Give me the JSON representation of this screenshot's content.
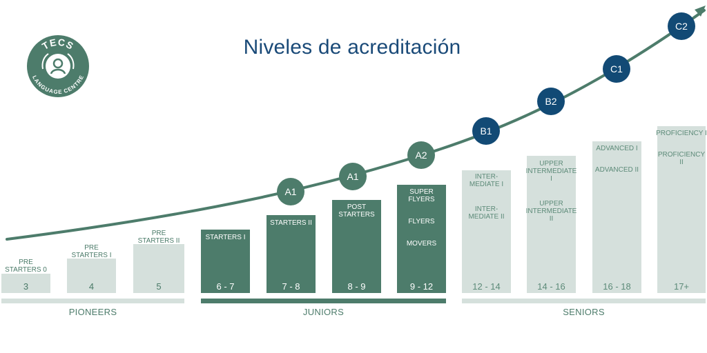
{
  "title": "Niveles de acreditación",
  "logo": {
    "top_text": "TECS",
    "bottom_text": "LANGUAGE CENTRE"
  },
  "colors": {
    "green": "#4d7c6b",
    "light": "#d5e0dc",
    "blue": "#124a75",
    "title": "#1a4a78"
  },
  "groups": [
    {
      "label": "PIONEERS"
    },
    {
      "label": "JUNIORS"
    },
    {
      "label": "SENIORS"
    }
  ],
  "columns": [
    {
      "levels": [
        "PRE",
        "STARTERS 0"
      ],
      "age": "3"
    },
    {
      "levels": [
        "PRE",
        "STARTERS I"
      ],
      "age": "4"
    },
    {
      "levels": [
        "PRE",
        "STARTERS II"
      ],
      "age": "5"
    },
    {
      "levels": [
        "STARTERS I"
      ],
      "age": "6 - 7"
    },
    {
      "levels": [
        "STARTERS II"
      ],
      "age": "7 - 8"
    },
    {
      "levels": [
        "POST",
        "STARTERS"
      ],
      "age": "8 - 9"
    },
    {
      "levels": [
        "SUPER",
        "FLYERS",
        "FLYERS",
        "MOVERS"
      ],
      "age": "9 - 12"
    },
    {
      "levels": [
        "INTER-",
        "MEDIATE I",
        "INTER-",
        "MEDIATE II"
      ],
      "age": "12 - 14"
    },
    {
      "levels": [
        "UPPER",
        "INTERMEDIATE I",
        "UPPER",
        "INTERMEDIATE II"
      ],
      "age": "14 - 16"
    },
    {
      "levels": [
        "ADVANCED I",
        "ADVANCED II"
      ],
      "age": "16 - 18"
    },
    {
      "levels": [
        "PROFICIENCY I",
        "PROFICIENCY II"
      ],
      "age": "17+"
    }
  ],
  "cefr": [
    "A1",
    "A1",
    "A2",
    "B1",
    "B2",
    "C1",
    "C2"
  ]
}
